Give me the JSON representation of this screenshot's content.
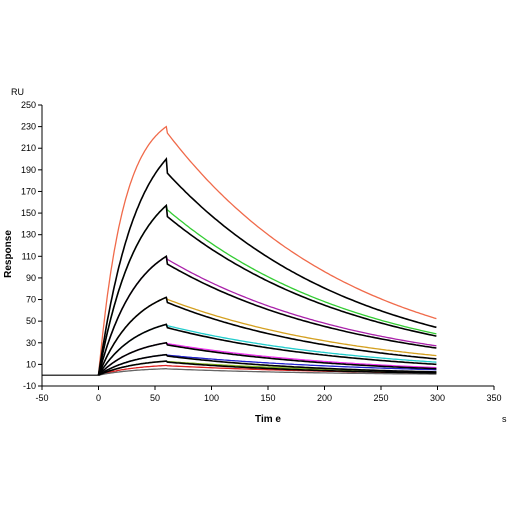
{
  "chart_data": {
    "type": "line",
    "title": "",
    "xlabel": "Tim e",
    "ylabel": "Response",
    "y_unit": "RU",
    "x_unit": "s",
    "xlim": [
      -50,
      350
    ],
    "ylim": [
      -10,
      250
    ],
    "x_ticks": [
      -50,
      0,
      50,
      100,
      150,
      200,
      250,
      300,
      350
    ],
    "y_ticks": [
      -10,
      10,
      30,
      50,
      70,
      90,
      110,
      130,
      150,
      170,
      190,
      210,
      230,
      250
    ],
    "grid": false,
    "legend": "none",
    "association_end": 60,
    "curve_end": 300,
    "baseline_start": -50,
    "colored_series": [
      {
        "color": "#f06a4a",
        "peak": 230,
        "end": 52
      },
      {
        "color": "#33cc33",
        "peak": 157,
        "end": 38
      },
      {
        "color": "#aa22aa",
        "peak": 110,
        "end": 27
      },
      {
        "color": "#d4a020",
        "peak": 72,
        "end": 18
      },
      {
        "color": "#22cccc",
        "peak": 47,
        "end": 12
      },
      {
        "color": "#ee33ee",
        "peak": 30,
        "end": 7
      },
      {
        "color": "#2222cc",
        "peak": 19,
        "end": 5
      },
      {
        "color": "#88bb22",
        "peak": 13,
        "end": 3
      },
      {
        "color": "#dd2222",
        "peak": 9,
        "end": 2
      },
      {
        "color": "#666666",
        "peak": 6,
        "end": 1
      }
    ],
    "fit_series": [
      {
        "color": "#000000",
        "peak": 200,
        "end": 44
      },
      {
        "color": "#000000",
        "peak": 157,
        "end": 36
      },
      {
        "color": "#000000",
        "peak": 110,
        "end": 25
      },
      {
        "color": "#000000",
        "peak": 72,
        "end": 15
      },
      {
        "color": "#000000",
        "peak": 47,
        "end": 10
      },
      {
        "color": "#000000",
        "peak": 30,
        "end": 6
      },
      {
        "color": "#000000",
        "peak": 19,
        "end": 3
      },
      {
        "color": "#000000",
        "peak": 13,
        "end": 2
      }
    ]
  }
}
